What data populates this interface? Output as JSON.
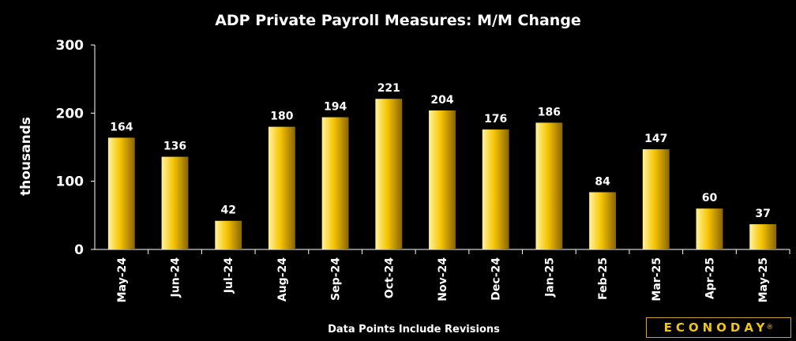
{
  "chart_data": {
    "type": "bar",
    "title": "ADP Private Payroll Measures: M/M Change",
    "ylabel": "thousands",
    "xlabel": "",
    "ylim": [
      0,
      300
    ],
    "yticks": [
      0,
      100,
      200,
      300
    ],
    "categories": [
      "May-24",
      "Jun-24",
      "Jul-24",
      "Aug-24",
      "Sep-24",
      "Oct-24",
      "Nov-24",
      "Dec-24",
      "Jan-25",
      "Feb-25",
      "Mar-25",
      "Apr-25",
      "May-25"
    ],
    "values": [
      164,
      136,
      42,
      180,
      194,
      221,
      204,
      176,
      186,
      84,
      147,
      60,
      37
    ],
    "footnote": "Data Points Include Revisions",
    "grid": false
  },
  "brand": {
    "name": "ECONODAY",
    "mark": "®"
  },
  "colors": {
    "bar_light": "#fff2a0",
    "bar_mid": "#f5c400",
    "bar_dark": "#7a5a00",
    "axis": "#ffffff"
  }
}
